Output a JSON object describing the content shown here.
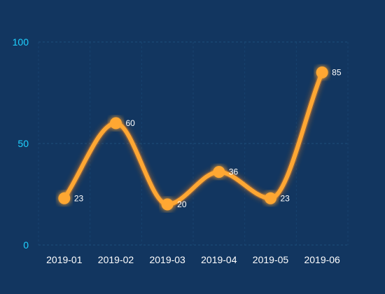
{
  "colors": {
    "background": "#123660",
    "line": "#ffa733",
    "glow": "#ff8a1a",
    "grid": "#1d4d7a",
    "y_tick_text": "#1fd1ff",
    "x_tick_text": "#ffffff",
    "data_label_text": "#ffffff"
  },
  "chart_data": {
    "type": "line",
    "smooth": true,
    "categories": [
      "2019-01",
      "2019-02",
      "2019-03",
      "2019-04",
      "2019-05",
      "2019-06"
    ],
    "values": [
      23,
      60,
      20,
      36,
      23,
      85
    ],
    "ylim": [
      0,
      100
    ],
    "yticks": [
      0,
      50,
      100
    ],
    "grid": true,
    "legend": "none",
    "show_data_labels": true
  }
}
